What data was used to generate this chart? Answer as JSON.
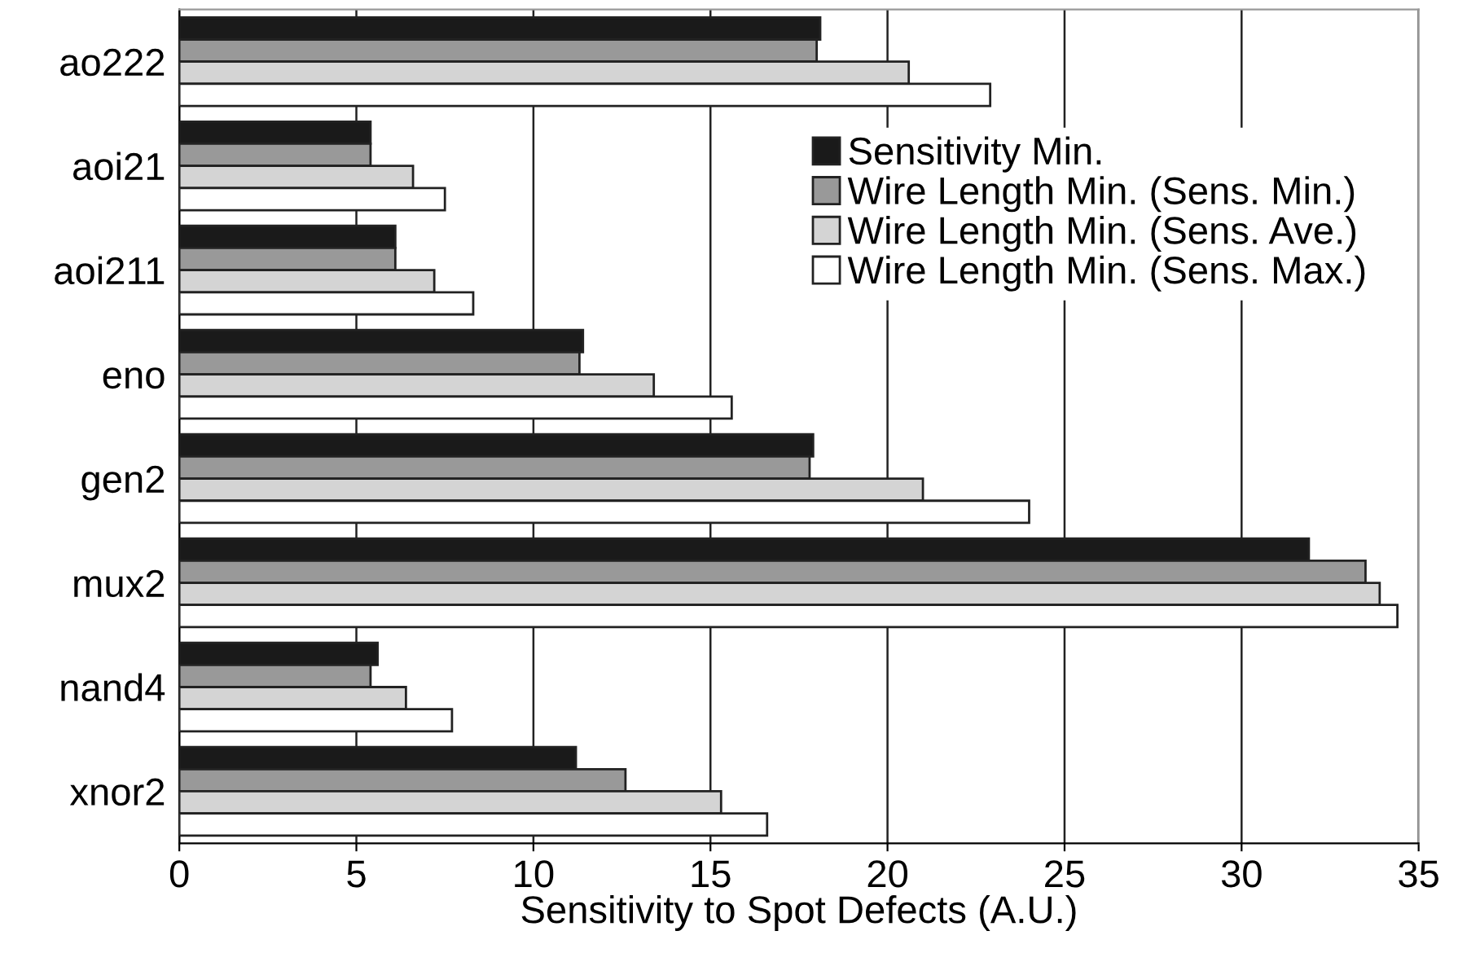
{
  "chart_data": {
    "type": "bar",
    "orientation": "horizontal",
    "xlabel": "Sensitivity to Spot Defects (A.U.)",
    "categories": [
      "ao222",
      "aoi21",
      "aoi211",
      "eno",
      "gen2",
      "mux2",
      "nand4",
      "xnor2"
    ],
    "series": [
      {
        "name": "Sensitivity Min.",
        "color": "#1a1a1a",
        "values": [
          18.1,
          5.4,
          6.1,
          11.4,
          17.9,
          31.9,
          5.6,
          11.2
        ]
      },
      {
        "name": "Wire Length Min. (Sens. Min.)",
        "color": "#999999",
        "values": [
          18.0,
          5.4,
          6.1,
          11.3,
          17.8,
          33.5,
          5.4,
          12.6
        ]
      },
      {
        "name": "Wire Length Min. (Sens. Ave.)",
        "color": "#d4d4d4",
        "values": [
          20.6,
          6.6,
          7.2,
          13.4,
          21.0,
          33.9,
          6.4,
          15.3
        ]
      },
      {
        "name": "Wire Length Min. (Sens. Max.)",
        "color": "#ffffff",
        "values": [
          22.9,
          7.5,
          8.3,
          15.6,
          24.0,
          34.4,
          7.7,
          16.6
        ]
      }
    ],
    "xlim": [
      0,
      35
    ],
    "xticks": [
      0,
      5,
      10,
      15,
      20,
      25,
      30,
      35
    ],
    "grid": "x",
    "legend": "top right"
  }
}
